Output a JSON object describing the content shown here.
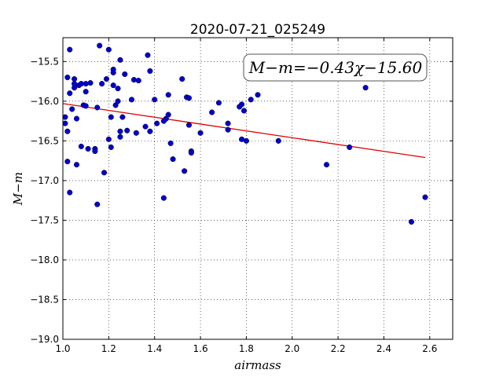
{
  "chart_data": {
    "type": "scatter",
    "title": "2020-07-21_025249",
    "xlabel": "airmass",
    "ylabel": "M−m",
    "xlim": [
      1.0,
      2.7
    ],
    "ylim": [
      -19.0,
      -15.2
    ],
    "y_inverted": true,
    "x_ticks": [
      "1.0",
      "1.2",
      "1.4",
      "1.6",
      "1.8",
      "2.0",
      "2.2",
      "2.4",
      "2.6"
    ],
    "y_ticks": [
      "−15.5",
      "−16.0",
      "−16.5",
      "−17.0",
      "−17.5",
      "−18.0",
      "−18.5",
      "−19.0"
    ],
    "x_tick_values": [
      1.0,
      1.2,
      1.4,
      1.6,
      1.8,
      2.0,
      2.2,
      2.4,
      2.6
    ],
    "y_tick_values": [
      -15.5,
      -16.0,
      -16.5,
      -17.0,
      -17.5,
      -18.0,
      -18.5,
      -19.0
    ],
    "grid": true,
    "point_color": "#0000cc",
    "fit_color": "#dd0000",
    "annotation": "M−m=−0.43χ−15.60",
    "fit": {
      "slope": -0.43,
      "intercept": -15.6,
      "x_range": [
        1.0,
        2.58
      ]
    },
    "points": [
      [
        1.01,
        -16.2
      ],
      [
        1.01,
        -16.28
      ],
      [
        1.02,
        -16.38
      ],
      [
        1.02,
        -16.76
      ],
      [
        1.02,
        -15.7
      ],
      [
        1.03,
        -15.35
      ],
      [
        1.03,
        -17.15
      ],
      [
        1.03,
        -15.9
      ],
      [
        1.04,
        -16.1
      ],
      [
        1.05,
        -15.72
      ],
      [
        1.05,
        -15.78
      ],
      [
        1.05,
        -15.83
      ],
      [
        1.06,
        -16.22
      ],
      [
        1.06,
        -16.8
      ],
      [
        1.07,
        -15.8
      ],
      [
        1.08,
        -15.78
      ],
      [
        1.08,
        -16.57
      ],
      [
        1.09,
        -16.05
      ],
      [
        1.1,
        -15.78
      ],
      [
        1.1,
        -16.06
      ],
      [
        1.1,
        -15.88
      ],
      [
        1.11,
        -16.6
      ],
      [
        1.12,
        -15.77
      ],
      [
        1.14,
        -16.6
      ],
      [
        1.14,
        -16.63
      ],
      [
        1.15,
        -16.08
      ],
      [
        1.15,
        -17.3
      ],
      [
        1.16,
        -15.3
      ],
      [
        1.17,
        -15.78
      ],
      [
        1.18,
        -16.9
      ],
      [
        1.19,
        -15.72
      ],
      [
        1.2,
        -15.35
      ],
      [
        1.2,
        -16.48
      ],
      [
        1.21,
        -16.2
      ],
      [
        1.21,
        -16.58
      ],
      [
        1.22,
        -15.64
      ],
      [
        1.22,
        -15.6
      ],
      [
        1.22,
        -15.8
      ],
      [
        1.23,
        -16.05
      ],
      [
        1.24,
        -16.0
      ],
      [
        1.24,
        -15.84
      ],
      [
        1.25,
        -16.45
      ],
      [
        1.25,
        -15.48
      ],
      [
        1.25,
        -16.38
      ],
      [
        1.26,
        -16.2
      ],
      [
        1.27,
        -15.66
      ],
      [
        1.28,
        -16.37
      ],
      [
        1.3,
        -15.98
      ],
      [
        1.31,
        -15.73
      ],
      [
        1.32,
        -16.4
      ],
      [
        1.33,
        -15.74
      ],
      [
        1.36,
        -16.32
      ],
      [
        1.37,
        -15.42
      ],
      [
        1.38,
        -16.38
      ],
      [
        1.38,
        -15.62
      ],
      [
        1.4,
        -15.98
      ],
      [
        1.41,
        -16.28
      ],
      [
        1.44,
        -17.22
      ],
      [
        1.44,
        -16.25
      ],
      [
        1.45,
        -16.22
      ],
      [
        1.46,
        -16.17
      ],
      [
        1.46,
        -15.92
      ],
      [
        1.47,
        -16.53
      ],
      [
        1.48,
        -16.73
      ],
      [
        1.52,
        -15.72
      ],
      [
        1.53,
        -16.88
      ],
      [
        1.54,
        -15.95
      ],
      [
        1.55,
        -15.96
      ],
      [
        1.55,
        -16.3
      ],
      [
        1.56,
        -16.63
      ],
      [
        1.56,
        -16.65
      ],
      [
        1.6,
        -16.4
      ],
      [
        1.65,
        -16.14
      ],
      [
        1.68,
        -16.02
      ],
      [
        1.72,
        -16.28
      ],
      [
        1.72,
        -16.36
      ],
      [
        1.77,
        -16.07
      ],
      [
        1.78,
        -16.04
      ],
      [
        1.78,
        -16.48
      ],
      [
        1.79,
        -16.12
      ],
      [
        1.8,
        -16.5
      ],
      [
        1.82,
        -15.98
      ],
      [
        1.85,
        -15.92
      ],
      [
        1.94,
        -16.5
      ],
      [
        2.15,
        -16.8
      ],
      [
        2.25,
        -16.58
      ],
      [
        2.32,
        -15.83
      ],
      [
        2.52,
        -17.52
      ],
      [
        2.58,
        -17.21
      ]
    ]
  }
}
